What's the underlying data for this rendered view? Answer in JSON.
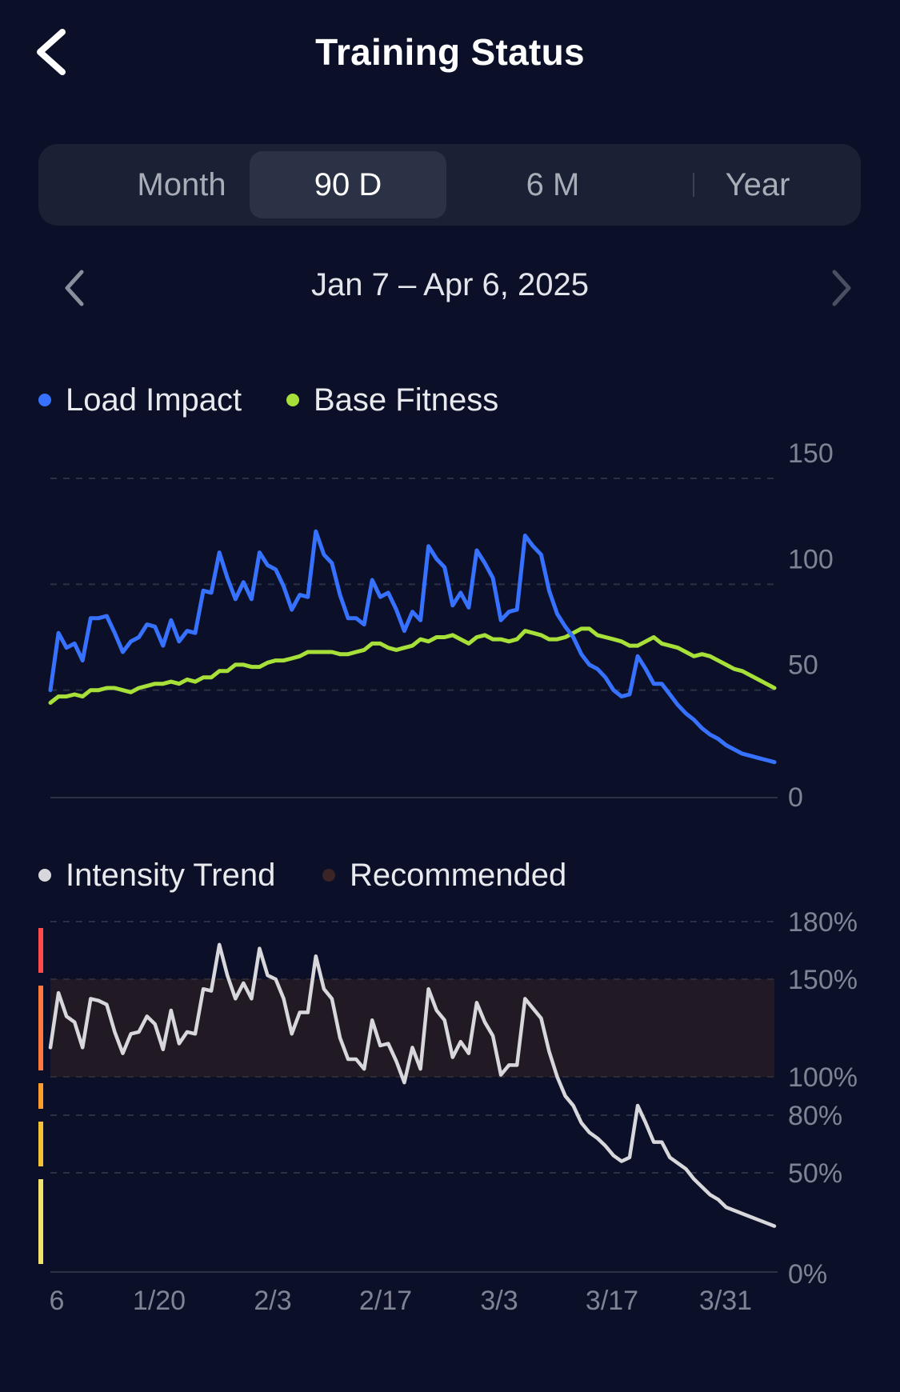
{
  "header": {
    "title": "Training Status",
    "back_icon": "chevron-left-icon"
  },
  "tabs": [
    {
      "label": "Month",
      "active": false
    },
    {
      "label": "90 D",
      "active": true
    },
    {
      "label": "6 M",
      "active": false
    },
    {
      "label": "Year",
      "active": false
    }
  ],
  "date_range": {
    "label": "Jan 7 – Apr 6, 2025",
    "prev_icon": "chevron-left-icon",
    "next_icon": "chevron-right-icon"
  },
  "colors": {
    "background": "#0b1028",
    "load_impact": "#3672ff",
    "base_fitness": "#a8e03a",
    "intensity_trend": "#d8d8dc",
    "recommended": "#3a2426",
    "zone_colors": [
      "#ff4b4b",
      "#ff7a3c",
      "#ff9d2e",
      "#f5c237",
      "#f3e36b"
    ]
  },
  "legend_load": [
    {
      "label": "Load Impact",
      "color": "#3672ff"
    },
    {
      "label": "Base Fitness",
      "color": "#a8e03a"
    }
  ],
  "legend_intensity": [
    {
      "label": "Intensity Trend",
      "color": "#d8d8dc"
    },
    {
      "label": "Recommended",
      "color": "#3a2426"
    }
  ],
  "x_ticks": [
    "6",
    "1/20",
    "2/3",
    "2/17",
    "3/3",
    "3/17",
    "3/31"
  ],
  "chart_data": [
    {
      "type": "line",
      "x_ticks": [
        "6",
        "1/20",
        "2/3",
        "2/17",
        "3/3",
        "3/17",
        "3/31"
      ],
      "y_ticks": [
        "150",
        "100",
        "50",
        "0"
      ],
      "ylim": [
        0,
        150
      ],
      "grid": true,
      "legend_placement": "top-left",
      "series": [
        {
          "name": "Load Impact",
          "color": "#3672ff",
          "values": [
            50,
            77,
            70,
            72,
            64,
            84,
            84,
            85,
            77,
            68,
            73,
            75,
            81,
            80,
            71,
            83,
            73,
            78,
            77,
            97,
            96,
            115,
            103,
            93,
            101,
            93,
            115,
            109,
            107,
            99,
            88,
            95,
            94,
            125,
            114,
            110,
            95,
            84,
            84,
            81,
            102,
            94,
            96,
            88,
            78,
            87,
            83,
            118,
            112,
            108,
            90,
            96,
            89,
            116,
            110,
            103,
            83,
            87,
            88,
            123,
            118,
            114,
            97,
            86,
            80,
            75,
            67,
            62,
            60,
            56,
            50,
            47,
            48,
            66,
            60,
            53,
            53,
            48,
            43,
            39,
            36,
            32,
            29,
            27,
            24,
            22,
            20,
            19,
            18,
            17,
            16
          ]
        },
        {
          "name": "Base Fitness",
          "color": "#a8e03a",
          "values": [
            44,
            47,
            47,
            48,
            47,
            50,
            50,
            51,
            51,
            50,
            49,
            51,
            52,
            53,
            53,
            54,
            53,
            55,
            54,
            56,
            56,
            59,
            59,
            62,
            62,
            61,
            61,
            63,
            64,
            64,
            65,
            66,
            68,
            68,
            68,
            68,
            67,
            67,
            68,
            69,
            72,
            72,
            70,
            69,
            70,
            71,
            74,
            73,
            75,
            75,
            76,
            74,
            72,
            75,
            76,
            74,
            74,
            73,
            74,
            78,
            77,
            76,
            74,
            74,
            75,
            77,
            79,
            79,
            76,
            75,
            74,
            73,
            71,
            71,
            73,
            75,
            72,
            71,
            70,
            68,
            66,
            67,
            66,
            64,
            62,
            60,
            59,
            57,
            55,
            53,
            51
          ]
        }
      ]
    },
    {
      "type": "line",
      "x_ticks": [
        "6",
        "1/20",
        "2/3",
        "2/17",
        "3/3",
        "3/17",
        "3/31"
      ],
      "y_ticks": [
        "180%",
        "150%",
        "100%",
        "80%",
        "50%",
        "0%"
      ],
      "ylim": [
        0,
        180
      ],
      "grid": true,
      "legend_placement": "top-left",
      "recommended_band": [
        100,
        150
      ],
      "series": [
        {
          "name": "Intensity Trend",
          "color": "#d8d8dc",
          "values": [
            115,
            143,
            131,
            128,
            115,
            140,
            139,
            137,
            123,
            112,
            122,
            123,
            131,
            127,
            114,
            134,
            117,
            123,
            122,
            145,
            144,
            168,
            152,
            140,
            148,
            140,
            166,
            152,
            150,
            140,
            122,
            133,
            133,
            162,
            145,
            140,
            120,
            109,
            109,
            104,
            129,
            116,
            117,
            108,
            97,
            115,
            104,
            145,
            134,
            129,
            110,
            118,
            112,
            138,
            128,
            121,
            101,
            106,
            106,
            140,
            135,
            130,
            113,
            100,
            90,
            85,
            76,
            71,
            68,
            64,
            59,
            56,
            58,
            85,
            76,
            66,
            66,
            58,
            55,
            52,
            46,
            41,
            36,
            33,
            28,
            26,
            24,
            22,
            20,
            18,
            16
          ]
        }
      ]
    }
  ]
}
